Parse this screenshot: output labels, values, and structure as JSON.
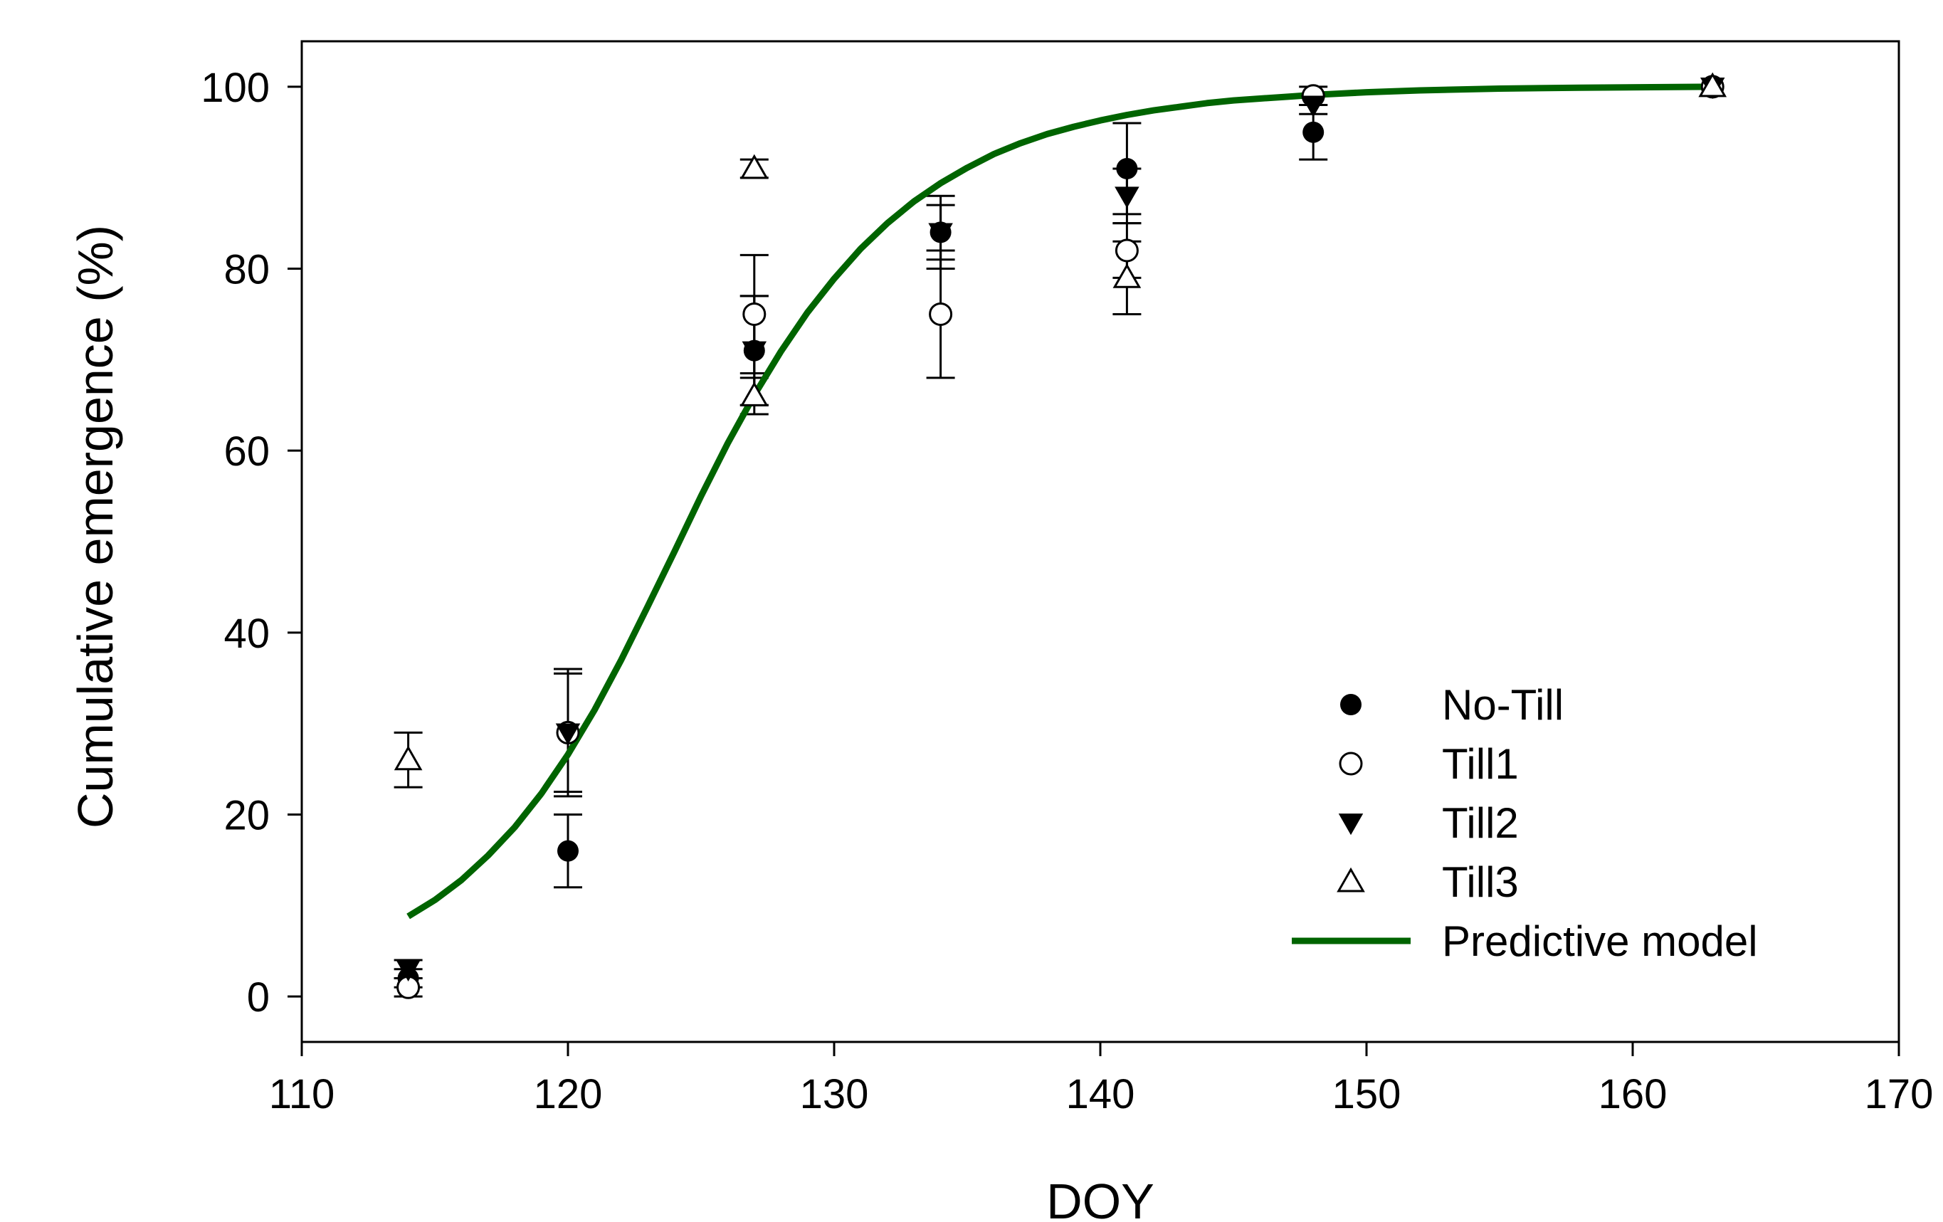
{
  "chart_data": {
    "type": "scatter",
    "title": "",
    "xlabel": "DOY",
    "ylabel": "Cumulative emergence (%)",
    "xlim": [
      110,
      170
    ],
    "ylim": [
      -5,
      105
    ],
    "xticks": [
      110,
      120,
      130,
      140,
      150,
      160,
      170
    ],
    "yticks": [
      0,
      20,
      40,
      60,
      80,
      100
    ],
    "xtick_labels": [
      "110",
      "120",
      "130",
      "140",
      "150",
      "160",
      "170"
    ],
    "ytick_labels": [
      "0",
      "20",
      "40",
      "60",
      "80",
      "100"
    ],
    "grid": false,
    "legend_position": "bottom-right",
    "series": [
      {
        "name": "No-Till",
        "marker": "filled-circle",
        "color": "#000000",
        "points": [
          {
            "x": 114,
            "y": 2,
            "err": 1
          },
          {
            "x": 120,
            "y": 16,
            "err": 4
          },
          {
            "x": 127,
            "y": 71,
            "err": 6
          },
          {
            "x": 134,
            "y": 84,
            "err": 4
          },
          {
            "x": 141,
            "y": 91,
            "err": 5
          },
          {
            "x": 148,
            "y": 95,
            "err": 3
          },
          {
            "x": 163,
            "y": 100,
            "err": 0
          }
        ]
      },
      {
        "name": "Till1",
        "marker": "open-circle",
        "color": "#000000",
        "points": [
          {
            "x": 114,
            "y": 1,
            "err": 1
          },
          {
            "x": 120,
            "y": 29,
            "err": 7
          },
          {
            "x": 127,
            "y": 75,
            "err": 6.5
          },
          {
            "x": 134,
            "y": 75,
            "err": 7
          },
          {
            "x": 141,
            "y": 82,
            "err": 3
          },
          {
            "x": 148,
            "y": 99,
            "err": 1
          },
          {
            "x": 163,
            "y": 100,
            "err": 0
          }
        ]
      },
      {
        "name": "Till2",
        "marker": "filled-triangle-down",
        "color": "#000000",
        "points": [
          {
            "x": 114,
            "y": 3,
            "err": 1
          },
          {
            "x": 120,
            "y": 29,
            "err": 6.5
          },
          {
            "x": 127,
            "y": 71,
            "err": 6
          },
          {
            "x": 134,
            "y": 84,
            "err": 3
          },
          {
            "x": 141,
            "y": 88,
            "err": 3
          },
          {
            "x": 148,
            "y": 98,
            "err": 1
          },
          {
            "x": 163,
            "y": 100,
            "err": 0
          }
        ]
      },
      {
        "name": "Till3",
        "marker": "open-triangle-up",
        "color": "#000000",
        "points": [
          {
            "x": 114,
            "y": 26,
            "err": 3
          },
          {
            "x": 127,
            "y": 91,
            "err": 1
          },
          {
            "x": 127,
            "y": 66,
            "err": 2
          },
          {
            "x": 141,
            "y": 79,
            "err": 4
          },
          {
            "x": 163,
            "y": 100,
            "err": 0
          }
        ]
      }
    ],
    "model": {
      "name": "Predictive model",
      "type": "line",
      "color": "#006400",
      "points": [
        [
          114,
          8.8
        ],
        [
          115,
          10.6
        ],
        [
          116,
          12.8
        ],
        [
          117,
          15.5
        ],
        [
          118,
          18.6
        ],
        [
          119,
          22.3
        ],
        [
          120,
          26.6
        ],
        [
          121,
          31.5
        ],
        [
          122,
          37.0
        ],
        [
          123,
          42.9
        ],
        [
          124,
          48.9
        ],
        [
          125,
          55.0
        ],
        [
          126,
          60.8
        ],
        [
          127,
          66.1
        ],
        [
          128,
          70.9
        ],
        [
          129,
          75.2
        ],
        [
          130,
          78.9
        ],
        [
          131,
          82.2
        ],
        [
          132,
          85.0
        ],
        [
          133,
          87.4
        ],
        [
          134,
          89.4
        ],
        [
          135,
          91.1
        ],
        [
          136,
          92.6
        ],
        [
          137,
          93.8
        ],
        [
          138,
          94.8
        ],
        [
          139,
          95.6
        ],
        [
          140,
          96.3
        ],
        [
          141,
          96.9
        ],
        [
          142,
          97.4
        ],
        [
          143,
          97.8
        ],
        [
          144,
          98.2
        ],
        [
          145,
          98.5
        ],
        [
          146,
          98.7
        ],
        [
          147,
          98.9
        ],
        [
          148,
          99.1
        ],
        [
          150,
          99.4
        ],
        [
          152,
          99.6
        ],
        [
          155,
          99.8
        ],
        [
          158,
          99.9
        ],
        [
          163,
          100
        ]
      ]
    }
  }
}
